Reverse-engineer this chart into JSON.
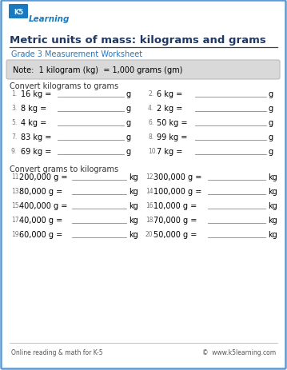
{
  "border_color": "#5b9bd5",
  "background": "#ffffff",
  "title": "Metric units of mass: kilograms and grams",
  "title_color": "#1f3864",
  "subtitle": "Grade 3 Measurement Worksheet",
  "subtitle_color": "#2e75b6",
  "note_text": "Note:  1 kilogram (kg)  = 1,000 grams (gm)",
  "note_bg": "#d9d9d9",
  "note_color": "#000000",
  "section1_title": "Convert kilograms to grams",
  "section2_title": "Convert grams to kilograms",
  "col1_problems_kg": [
    {
      "num": "1.",
      "val": "16 kg =",
      "unit": "g"
    },
    {
      "num": "3.",
      "val": "8 kg =",
      "unit": "g"
    },
    {
      "num": "5.",
      "val": "4 kg =",
      "unit": "g"
    },
    {
      "num": "7.",
      "val": "83 kg =",
      "unit": "g"
    },
    {
      "num": "9.",
      "val": "69 kg =",
      "unit": "g"
    }
  ],
  "col2_problems_kg": [
    {
      "num": "2.",
      "val": "6 kg =",
      "unit": "g"
    },
    {
      "num": "4.",
      "val": "2 kg =",
      "unit": "g"
    },
    {
      "num": "6.",
      "val": "50 kg =",
      "unit": "g"
    },
    {
      "num": "8.",
      "val": "99 kg =",
      "unit": "g"
    },
    {
      "num": "10.",
      "val": "7 kg =",
      "unit": "g"
    }
  ],
  "col1_problems_g": [
    {
      "num": "11.",
      "val": "200,000 g =",
      "unit": "kg"
    },
    {
      "num": "13.",
      "val": "80,000 g =",
      "unit": "kg"
    },
    {
      "num": "15.",
      "val": "400,000 g =",
      "unit": "kg"
    },
    {
      "num": "17.",
      "val": "40,000 g =",
      "unit": "kg"
    },
    {
      "num": "19.",
      "val": "60,000 g =",
      "unit": "kg"
    }
  ],
  "col2_problems_g": [
    {
      "num": "12.",
      "val": "300,000 g =",
      "unit": "kg"
    },
    {
      "num": "14.",
      "val": "100,000 g =",
      "unit": "kg"
    },
    {
      "num": "16.",
      "val": "10,000 g =",
      "unit": "kg"
    },
    {
      "num": "18.",
      "val": "70,000 g =",
      "unit": "kg"
    },
    {
      "num": "20.",
      "val": "50,000 g =",
      "unit": "kg"
    }
  ],
  "footer_left": "Online reading & math for K-5",
  "footer_right": "©  www.k5learning.com",
  "logo_blue": "#1a7abf",
  "logo_green": "#5aaa3c",
  "line_color": "#888888",
  "text_color": "#333333",
  "num_color": "#777777"
}
